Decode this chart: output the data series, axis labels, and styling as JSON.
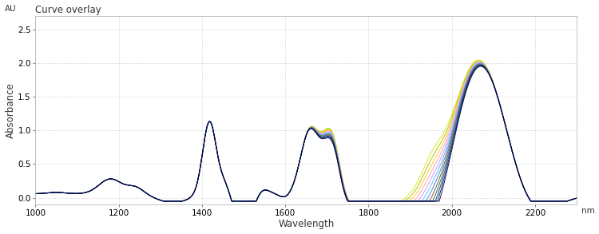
{
  "title": "Curve overlay",
  "xlabel": "Wavelength",
  "ylabel": "Absorbance",
  "ylabel_unit": "AU",
  "xlabel_unit": "nm",
  "xlim": [
    1000,
    2300
  ],
  "ylim": [
    -0.1,
    2.7
  ],
  "yticks": [
    0.0,
    0.5,
    1.0,
    1.5,
    2.0,
    2.5
  ],
  "xticks": [
    1000,
    1200,
    1400,
    1600,
    1800,
    2000,
    2200
  ],
  "background_color": "#ffffff",
  "grid_color": "#c8c8c8",
  "n_curves": 12,
  "curve_colors": [
    "#ccee00",
    "#aabb00",
    "#ffcc00",
    "#ff99bb",
    "#dd88ff",
    "#55bbff",
    "#2288dd",
    "#884422",
    "#226644",
    "#003388",
    "#001166",
    "#000044"
  ]
}
